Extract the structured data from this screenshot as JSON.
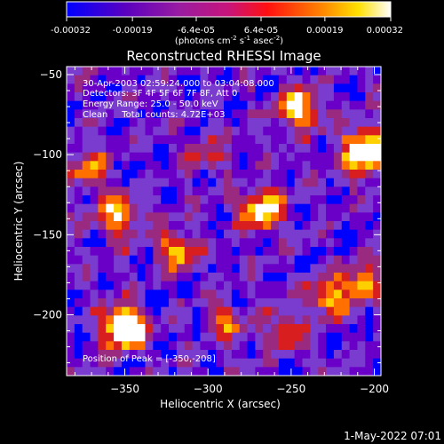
{
  "colorbar": {
    "ticks": [
      "-0.00032",
      "-0.00019",
      "-6.4e-05",
      "6.4e-05",
      "0.00019",
      "0.00032"
    ],
    "tick_values": [
      -0.00032,
      -0.00019,
      -6.4e-05,
      6.4e-05,
      0.00019,
      0.00032
    ],
    "range": [
      -0.00032,
      0.00032
    ],
    "units_text": "(photons cm",
    "units_sup1": "-2",
    "units_mid1": " s",
    "units_sup2": "-1",
    "units_mid2": " asec",
    "units_sup3": "-2",
    "units_end": ")"
  },
  "info": {
    "line1": "30-Apr-2003 02:59:24.000 to 03:04:08.000",
    "line2": "Detectors: 3F 4F 5F 6F 7F 8F, Att 0",
    "line3": "Energy Range: 25.0 - 50.0 keV",
    "line4": "Clean     Total counts: 4.72E+03",
    "peak": "Position of Peak = [-350,-208]"
  },
  "timestamp": "1-May-2022 07:01",
  "chart_data": {
    "type": "heatmap",
    "title": "Reconstructed RHESSI Image",
    "xlabel": "Heliocentric X (arcsec)",
    "ylabel": "Heliocentric Y (arcsec)",
    "xlim": [
      -385,
      -196
    ],
    "ylim": [
      -238,
      -45
    ],
    "x_ticks": [
      -350,
      -300,
      -250,
      -200
    ],
    "y_ticks": [
      -50,
      -100,
      -150,
      -200
    ],
    "x_tick_labels": [
      "−350",
      "−300",
      "−250",
      "−200"
    ],
    "y_tick_labels": [
      "−50",
      "−100",
      "−150",
      "−200"
    ],
    "peak_position": [
      -350,
      -208
    ],
    "colormap": [
      "#0000ff",
      "#6a00c8",
      "#7a3ccf",
      "#9a2a80",
      "#d81e1e",
      "#ff7000",
      "#ffd000",
      "#ffffff"
    ],
    "grid_cols": 40,
    "grid_rows": 36,
    "hotspots": [
      {
        "x": -350,
        "y": -208,
        "amp": 1.0,
        "r": 9
      },
      {
        "x": -205,
        "y": -98,
        "amp": 0.95,
        "r": 10
      },
      {
        "x": -268,
        "y": -135,
        "amp": 0.75,
        "r": 9
      },
      {
        "x": -245,
        "y": -72,
        "amp": 0.7,
        "r": 9
      },
      {
        "x": -355,
        "y": -138,
        "amp": 0.55,
        "r": 10
      },
      {
        "x": -318,
        "y": -160,
        "amp": 0.6,
        "r": 8
      },
      {
        "x": -228,
        "y": -190,
        "amp": 0.55,
        "r": 9
      },
      {
        "x": -208,
        "y": -180,
        "amp": 0.6,
        "r": 8
      },
      {
        "x": -290,
        "y": -205,
        "amp": 0.45,
        "r": 8
      },
      {
        "x": -372,
        "y": -108,
        "amp": 0.5,
        "r": 8
      },
      {
        "x": -300,
        "y": -100,
        "amp": 0.35,
        "r": 8
      },
      {
        "x": -255,
        "y": -210,
        "amp": 0.45,
        "r": 8
      }
    ]
  }
}
